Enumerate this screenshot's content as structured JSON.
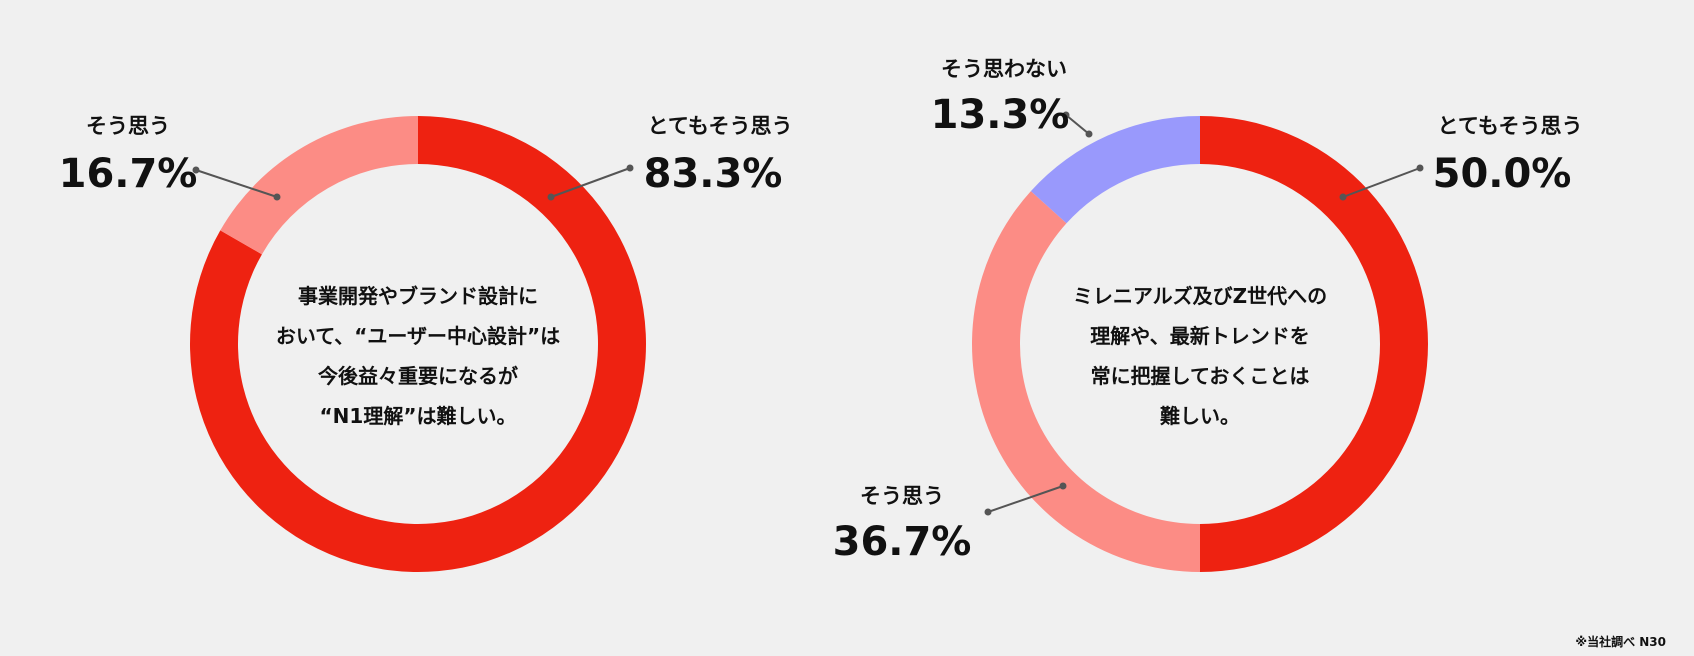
{
  "chart_data": [
    {
      "type": "pie",
      "donut": true,
      "title": "",
      "center_text": [
        "事業開発やブランド設計に",
        "おいて、“ユーザー中心設計”は",
        "今後益々重要になるが",
        "“N1理解”は難しい。"
      ],
      "slices": [
        {
          "label": "とてもそう思う",
          "value": 83.3,
          "display": "83.3%",
          "color": "#ee2211"
        },
        {
          "label": "そう思う",
          "value": 16.7,
          "display": "16.7%",
          "color": "#fc8c85"
        }
      ]
    },
    {
      "type": "pie",
      "donut": true,
      "title": "",
      "center_text": [
        "ミレニアルズ及びZ世代への",
        "理解や、最新トレンドを",
        "常に把握しておくことは",
        "難しい。"
      ],
      "slices": [
        {
          "label": "とてもそう思う",
          "value": 50.0,
          "display": "50.0%",
          "color": "#ee2211"
        },
        {
          "label": "そう思う",
          "value": 36.7,
          "display": "36.7%",
          "color": "#fc8c85"
        },
        {
          "label": "そう思わない",
          "value": 13.3,
          "display": "13.3%",
          "color": "#9999fc"
        }
      ]
    }
  ],
  "footnote": "※当社調べ N30"
}
